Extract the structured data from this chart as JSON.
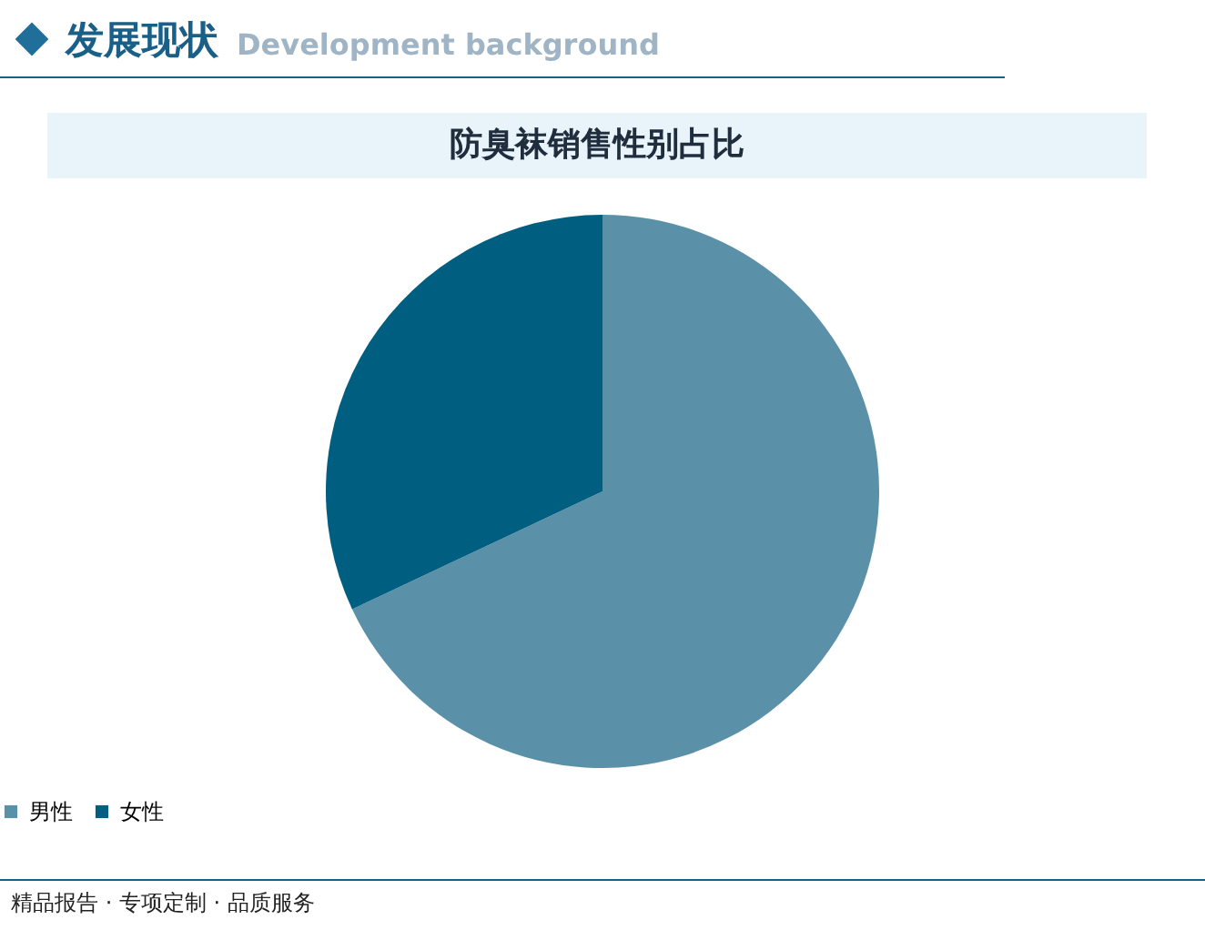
{
  "chart_data": {
    "type": "pie",
    "title": "防臭袜销售性别占比",
    "annotations": [
      "发展现状",
      "Development background",
      "精品报告 · 专项定制 · 品质服务"
    ],
    "categories": [
      "男性",
      "女性"
    ],
    "values": [
      68,
      32
    ],
    "colors": [
      "#5b91a8",
      "#005e80"
    ],
    "legend": "bottom"
  }
}
